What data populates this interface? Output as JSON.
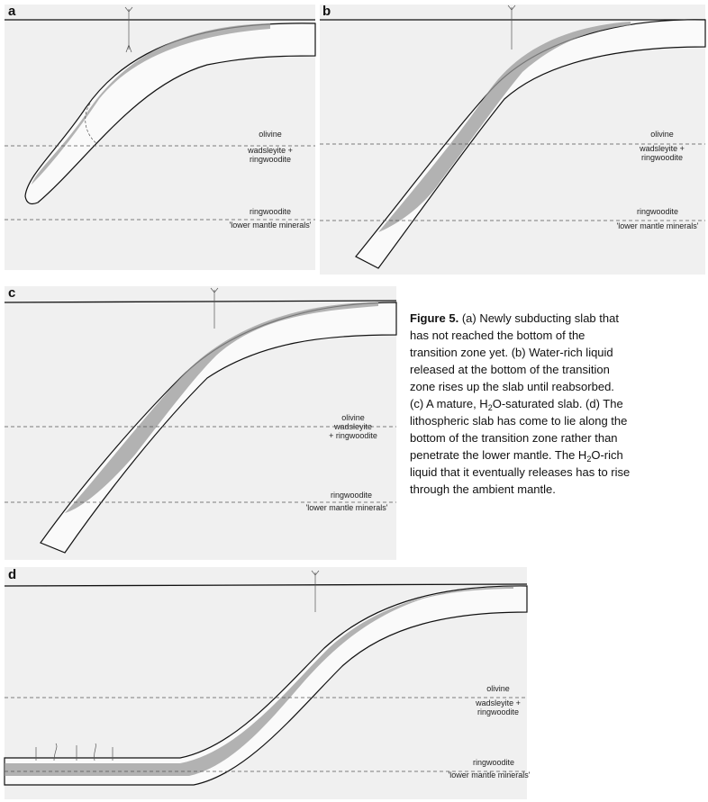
{
  "panels": [
    {
      "label": "a",
      "labels": [
        "olivine",
        "wadsleyite +",
        "ringwoodite",
        "ringwoodite",
        "'lower mantle minerals'"
      ]
    },
    {
      "label": "b",
      "labels": [
        "olivine",
        "wadsleyite +",
        "ringwoodite",
        "ringwoodite",
        "'lower mantle minerals'"
      ]
    },
    {
      "label": "c",
      "labels": [
        "olivine",
        "wadsleyite",
        "+ ringwoodite",
        "ringwoodite",
        "'lower mantle minerals'"
      ]
    },
    {
      "label": "d",
      "labels": [
        "olivine",
        "wadsleyite +",
        "ringwoodite",
        "ringwoodite",
        "'lower mantle minerals'"
      ]
    }
  ],
  "caption": {
    "title": "Figure 5.",
    "lines": [
      [
        "(a) Newly subducting slab that"
      ],
      [
        "has not reached the bottom of the"
      ],
      [
        "transition zone yet. (b) Water-rich liquid"
      ],
      [
        "released at the bottom of the transition"
      ],
      [
        "zone rises up the slab until reabsorbed."
      ],
      [
        "(c) A mature, H",
        "2",
        "O-saturated slab. (d) The"
      ],
      [
        "lithospheric slab has come to lie along the"
      ],
      [
        "bottom of the transition zone rather than"
      ],
      [
        "penetrate the lower mantle. The H",
        "2",
        "O-rich"
      ],
      [
        "liquid that it eventually releases has to rise"
      ],
      [
        "through the ambient mantle."
      ]
    ]
  }
}
